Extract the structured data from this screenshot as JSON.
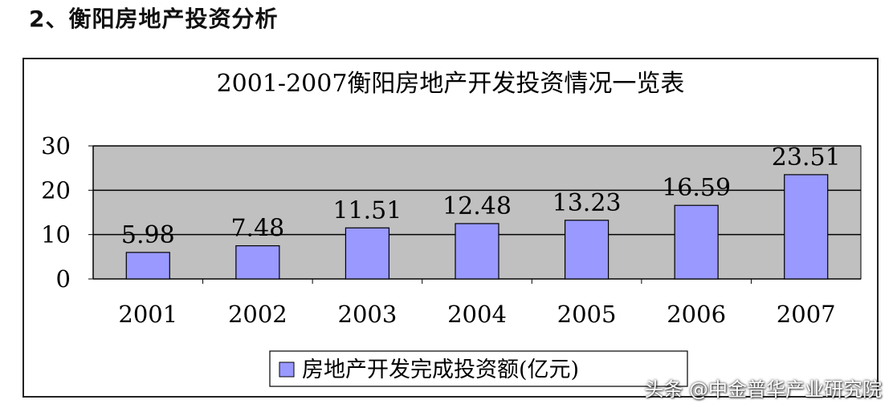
{
  "heading": "2、衡阳房地产投资分析",
  "watermark": "头条 @中金普华产业研究院",
  "chart_data": {
    "type": "bar",
    "title": "2001-2007衡阳房地产开发投资情况一览表",
    "categories": [
      "2001",
      "2002",
      "2003",
      "2004",
      "2005",
      "2006",
      "2007"
    ],
    "series": [
      {
        "name": "房地产开发完成投资额(亿元)",
        "values": [
          5.98,
          7.48,
          11.51,
          12.48,
          13.23,
          16.59,
          23.51
        ],
        "labels": [
          "5.98",
          "7.48",
          "11.51",
          "12.48",
          "13.23",
          "16.59",
          "23.51"
        ]
      }
    ],
    "ylim": [
      0,
      30
    ],
    "yticks": [
      "0",
      "10",
      "20",
      "30"
    ],
    "xlabel": "",
    "ylabel": "",
    "grid": true,
    "legend_position": "bottom",
    "colors": {
      "bar": "#9999FF",
      "plot_background": "#C0C0C0",
      "gridline": "#000000",
      "text": "#000000"
    }
  }
}
